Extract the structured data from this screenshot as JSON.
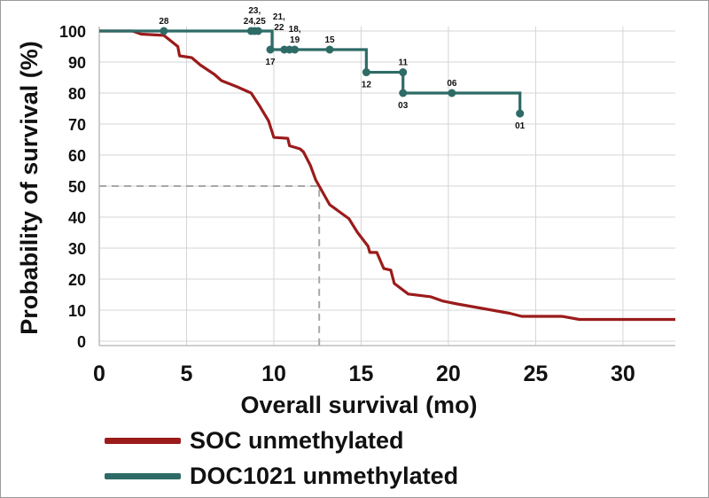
{
  "chart_data": {
    "type": "line",
    "subtype": "kaplan-meier",
    "title": "",
    "xlabel": "Overall survival (mo)",
    "ylabel": "Probability of survival (%)",
    "xlim": [
      0,
      33
    ],
    "ylim": [
      0,
      100
    ],
    "xticks": [
      0,
      5,
      10,
      15,
      20,
      25,
      30
    ],
    "yticks": [
      0,
      10,
      20,
      30,
      40,
      50,
      60,
      70,
      80,
      90,
      100
    ],
    "grid": true,
    "legend_position": "bottom",
    "median_reference": {
      "y": 50,
      "x": 12.6
    },
    "series": [
      {
        "name": "SOC unmethylated",
        "color": "#9b1b1b",
        "points": [
          [
            0,
            100
          ],
          [
            1.9,
            100
          ],
          [
            2.4,
            99
          ],
          [
            3.7,
            98.6
          ],
          [
            4.5,
            95
          ],
          [
            4.6,
            92
          ],
          [
            5.3,
            91.4
          ],
          [
            5.8,
            89
          ],
          [
            6.6,
            86
          ],
          [
            7.0,
            84
          ],
          [
            7.9,
            82
          ],
          [
            8.7,
            80
          ],
          [
            9.2,
            75.7
          ],
          [
            9.7,
            71
          ],
          [
            10.0,
            65.7
          ],
          [
            10.8,
            65.4
          ],
          [
            10.9,
            63
          ],
          [
            11.5,
            62
          ],
          [
            11.7,
            61
          ],
          [
            12.1,
            56.6
          ],
          [
            12.4,
            52
          ],
          [
            12.6,
            50
          ],
          [
            13.2,
            44
          ],
          [
            14.3,
            39.5
          ],
          [
            14.8,
            35
          ],
          [
            15.4,
            30.6
          ],
          [
            15.5,
            28.6
          ],
          [
            15.9,
            28.6
          ],
          [
            16.3,
            23.4
          ],
          [
            16.7,
            22.9
          ],
          [
            16.9,
            18.6
          ],
          [
            17.7,
            15.2
          ],
          [
            19.0,
            14.3
          ],
          [
            19.7,
            12.9
          ],
          [
            20.5,
            12
          ],
          [
            21.5,
            11
          ],
          [
            22.5,
            10
          ],
          [
            23.5,
            9
          ],
          [
            24.2,
            8
          ],
          [
            26.5,
            8
          ],
          [
            27.5,
            7
          ],
          [
            33,
            7
          ]
        ]
      },
      {
        "name": "DOC1021 unmethylated",
        "color": "#2e6b67",
        "steps": [
          [
            0,
            100
          ],
          [
            9.9,
            100
          ],
          [
            9.9,
            94
          ],
          [
            15.3,
            94
          ],
          [
            15.3,
            86.7
          ],
          [
            17.4,
            86.7
          ],
          [
            17.4,
            80
          ],
          [
            24.1,
            80
          ],
          [
            24.1,
            73.4
          ]
        ],
        "censored": [
          {
            "x": 3.7,
            "y": 100,
            "label": "28"
          },
          {
            "x": 8.7,
            "y": 100,
            "label": ""
          },
          {
            "x": 8.9,
            "y": 100,
            "label": "23,\n24,25"
          },
          {
            "x": 9.1,
            "y": 100,
            "label": ""
          },
          {
            "x": 9.8,
            "y": 94,
            "label": "17",
            "label_below": true
          },
          {
            "x": 10.6,
            "y": 94,
            "label": ""
          },
          {
            "x": 10.9,
            "y": 94,
            "label": ""
          },
          {
            "x": 11.2,
            "y": 94,
            "label": "18,\n19"
          },
          {
            "x": 13.2,
            "y": 94,
            "label": "15"
          },
          {
            "x": 15.3,
            "y": 86.7,
            "label": "12",
            "label_below": true
          },
          {
            "x": 17.4,
            "y": 86.7,
            "label": "11"
          },
          {
            "x": 17.4,
            "y": 80,
            "label": "03",
            "label_below": true
          },
          {
            "x": 20.2,
            "y": 80,
            "label": "06"
          },
          {
            "x": 24.1,
            "y": 73.4,
            "label": "01",
            "label_below": true
          }
        ],
        "extra_labels": [
          {
            "x": 10.3,
            "y": 100,
            "label": "21,\n22"
          }
        ]
      }
    ]
  }
}
